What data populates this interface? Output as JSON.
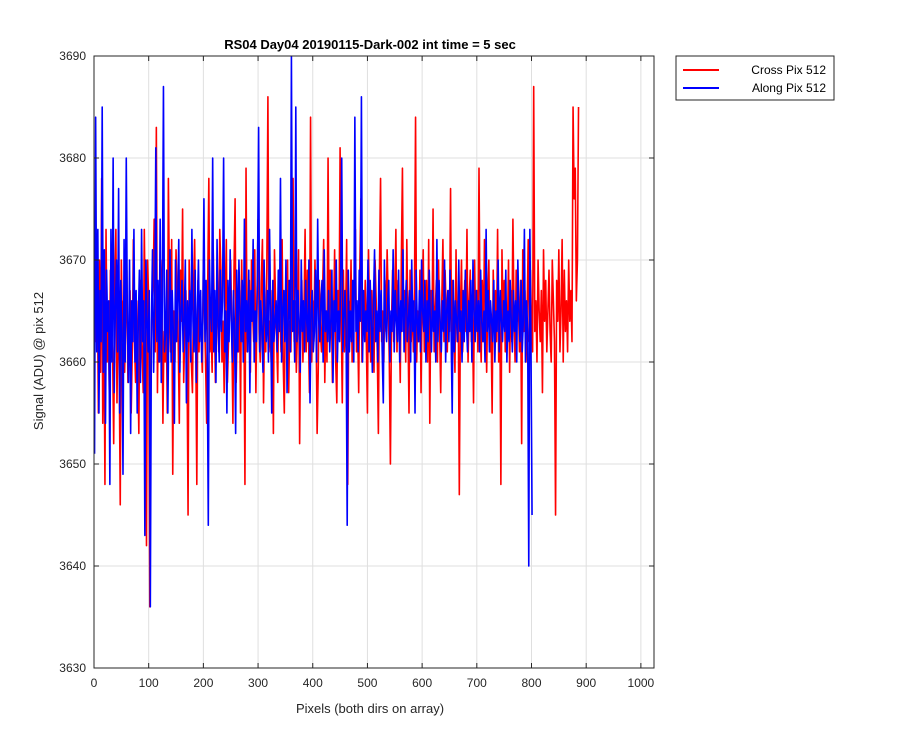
{
  "chart_data": {
    "type": "line",
    "title": "RS04 Day04 20190115-Dark-002 int time = 5 sec",
    "xlabel": "Pixels (both dirs on array)",
    "ylabel": "Signal (ADU) @ pix 512",
    "xlim": [
      0,
      1024
    ],
    "ylim": [
      3630,
      3690
    ],
    "xticks": [
      0,
      100,
      200,
      300,
      400,
      500,
      600,
      700,
      800,
      900,
      1000
    ],
    "yticks": [
      3630,
      3640,
      3650,
      3660,
      3670,
      3680,
      3690
    ],
    "grid": true,
    "legend_position": "outside-top-right",
    "sample_step": 2,
    "series": [
      {
        "name": "Cross Pix 512",
        "color": "#ff0000",
        "x_start": 0,
        "x_step": 2,
        "values": [
          3663,
          3672,
          3662,
          3668,
          3655,
          3670,
          3659,
          3678,
          3654,
          3666,
          3648,
          3673,
          3660,
          3664,
          3657,
          3669,
          3663,
          3661,
          3652,
          3667,
          3673,
          3656,
          3665,
          3660,
          3646,
          3670,
          3662,
          3666,
          3659,
          3664,
          3669,
          3658,
          3663,
          3667,
          3655,
          3661,
          3672,
          3662,
          3658,
          3666,
          3660,
          3653,
          3668,
          3664,
          3661,
          3657,
          3673,
          3663,
          3642,
          3670,
          3666,
          3636,
          3661,
          3665,
          3667,
          3674,
          3661,
          3683,
          3657,
          3666,
          3660,
          3670,
          3668,
          3654,
          3663,
          3660,
          3665,
          3655,
          3678,
          3667,
          3661,
          3672,
          3649,
          3665,
          3660,
          3671,
          3666,
          3662,
          3654,
          3669,
          3664,
          3675,
          3658,
          3663,
          3667,
          3661,
          3645,
          3670,
          3664,
          3660,
          3657,
          3667,
          3672,
          3662,
          3648,
          3668,
          3661,
          3666,
          3663,
          3659,
          3670,
          3665,
          3660,
          3654,
          3668,
          3678,
          3661,
          3664,
          3659,
          3671,
          3665,
          3658,
          3663,
          3667,
          3661,
          3673,
          3669,
          3660,
          3664,
          3657,
          3666,
          3672,
          3658,
          3662,
          3665,
          3670,
          3663,
          3654,
          3669,
          3676,
          3658,
          3664,
          3661,
          3667,
          3655,
          3670,
          3662,
          3666,
          3648,
          3679,
          3661,
          3664,
          3668,
          3659,
          3670,
          3665,
          3662,
          3671,
          3657,
          3666,
          3674,
          3663,
          3660,
          3668,
          3672,
          3656,
          3665,
          3661,
          3669,
          3686,
          3661,
          3664,
          3660,
          3667,
          3653,
          3671,
          3666,
          3662,
          3658,
          3669,
          3665,
          3661,
          3672,
          3660,
          3655,
          3667,
          3663,
          3670,
          3657,
          3664,
          3661,
          3669,
          3678,
          3662,
          3666,
          3659,
          3663,
          3671,
          3652,
          3664,
          3668,
          3660,
          3665,
          3673,
          3661,
          3669,
          3663,
          3657,
          3684,
          3660,
          3666,
          3662,
          3670,
          3664,
          3653,
          3659,
          3668,
          3663,
          3661,
          3667,
          3672,
          3658,
          3665,
          3660,
          3680,
          3662,
          3669,
          3666,
          3658,
          3664,
          3671,
          3660,
          3656,
          3667,
          3663,
          3681,
          3665,
          3656,
          3669,
          3661,
          3664,
          3672,
          3648,
          3666,
          3662,
          3670,
          3660,
          3663,
          3667,
          3673,
          3661,
          3664,
          3657,
          3669,
          3676,
          3660,
          3666,
          3663,
          3668,
          3662,
          3655,
          3671,
          3664,
          3660,
          3667,
          3663,
          3659,
          3670,
          3666,
          3661,
          3653,
          3669,
          3678,
          3662,
          3665,
          3660,
          3668,
          3663,
          3671,
          3666,
          3660,
          3650,
          3664,
          3669,
          3662,
          3666,
          3673,
          3661,
          3668,
          3664,
          3658,
          3670,
          3679,
          3663,
          3667,
          3660,
          3672,
          3664,
          3655,
          3669,
          3662,
          3666,
          3661,
          3667,
          3684,
          3660,
          3665,
          3662,
          3669,
          3657,
          3666,
          3671,
          3661,
          3664,
          3668,
          3660,
          3672,
          3654,
          3667,
          3663,
          3675,
          3661,
          3665,
          3668,
          3660,
          3670,
          3663,
          3657,
          3666,
          3672,
          3662,
          3669,
          3665,
          3661,
          3667,
          3663,
          3677,
          3660,
          3668,
          3664,
          3659,
          3671,
          3662,
          3666,
          3647,
          3665,
          3670,
          3661,
          3664,
          3668,
          3663,
          3673,
          3660,
          3666,
          3669,
          3662,
          3665,
          3656,
          3670,
          3663,
          3667,
          3661,
          3679,
          3664,
          3660,
          3668,
          3662,
          3672,
          3665,
          3659,
          3666,
          3670,
          3661,
          3664,
          3655,
          3669,
          3663,
          3667,
          3662,
          3673,
          3660,
          3666,
          3648,
          3671,
          3664,
          3668,
          3661,
          3665,
          3663,
          3670,
          3659,
          3667,
          3662,
          3674,
          3665,
          3660,
          3669,
          3664,
          3666,
          3661,
          3668,
          3652,
          3671,
          3663,
          3667,
          3660,
          3665,
          3672,
          3662,
          3669,
          3664,
          3661,
          3687,
          3663,
          3666,
          3660,
          3670,
          3665,
          3662,
          3667,
          3657,
          3671,
          3664,
          3668,
          3661,
          3665,
          3669,
          3663,
          3660,
          3670,
          3666,
          3662,
          3645,
          3668,
          3664,
          3671,
          3661,
          3665,
          3672,
          3660,
          3669,
          3663,
          3666,
          3661,
          3670,
          3664,
          3667,
          3662,
          3685,
          3676,
          3679,
          3666,
          3670,
          3685
        ]
      },
      {
        "name": "Along Pix 512",
        "color": "#0000ff",
        "x_start": 1,
        "x_step": 2,
        "values": [
          3651,
          3684,
          3661,
          3673,
          3655,
          3667,
          3662,
          3685,
          3659,
          3671,
          3654,
          3669,
          3663,
          3666,
          3648,
          3673,
          3660,
          3680,
          3657,
          3665,
          3670,
          3661,
          3677,
          3655,
          3668,
          3663,
          3649,
          3672,
          3660,
          3680,
          3664,
          3658,
          3670,
          3653,
          3666,
          3662,
          3673,
          3660,
          3667,
          3655,
          3664,
          3669,
          3658,
          3673,
          3662,
          3666,
          3643,
          3670,
          3664,
          3661,
          3667,
          3636,
          3664,
          3671,
          3659,
          3665,
          3681,
          3662,
          3668,
          3660,
          3674,
          3658,
          3666,
          3687,
          3661,
          3663,
          3669,
          3655,
          3665,
          3671,
          3660,
          3667,
          3663,
          3654,
          3670,
          3662,
          3666,
          3672,
          3659,
          3665,
          3668,
          3661,
          3664,
          3670,
          3656,
          3666,
          3662,
          3667,
          3660,
          3673,
          3664,
          3661,
          3669,
          3658,
          3665,
          3670,
          3662,
          3667,
          3660,
          3664,
          3676,
          3662,
          3668,
          3661,
          3644,
          3670,
          3665,
          3663,
          3680,
          3661,
          3667,
          3658,
          3672,
          3664,
          3660,
          3669,
          3663,
          3666,
          3680,
          3661,
          3665,
          3655,
          3668,
          3662,
          3671,
          3664,
          3660,
          3667,
          3663,
          3653,
          3669,
          3661,
          3670,
          3665,
          3662,
          3668,
          3660,
          3674,
          3663,
          3666,
          3661,
          3669,
          3657,
          3667,
          3664,
          3672,
          3660,
          3665,
          3662,
          3669,
          3683,
          3661,
          3666,
          3663,
          3659,
          3670,
          3664,
          3662,
          3667,
          3660,
          3673,
          3665,
          3655,
          3668,
          3662,
          3664,
          3666,
          3661,
          3669,
          3663,
          3678,
          3660,
          3665,
          3667,
          3662,
          3670,
          3657,
          3664,
          3668,
          3661,
          3690,
          3663,
          3666,
          3660,
          3685,
          3662,
          3667,
          3664,
          3659,
          3670,
          3663,
          3666,
          3661,
          3668,
          3664,
          3662,
          3670,
          3656,
          3665,
          3667,
          3661,
          3663,
          3669,
          3660,
          3674,
          3664,
          3662,
          3666,
          3668,
          3660,
          3671,
          3663,
          3665,
          3662,
          3667,
          3661,
          3664,
          3669,
          3658,
          3666,
          3663,
          3670,
          3660,
          3665,
          3662,
          3668,
          3680,
          3661,
          3664,
          3667,
          3663,
          3644,
          3669,
          3661,
          3665,
          3662,
          3668,
          3660,
          3684,
          3663,
          3666,
          3661,
          3669,
          3664,
          3686,
          3660,
          3667,
          3662,
          3665,
          3663,
          3670,
          3661,
          3668,
          3664,
          3659,
          3666,
          3671,
          3662,
          3665,
          3660,
          3669,
          3663,
          3667,
          3661,
          3656,
          3670,
          3664,
          3662,
          3666,
          3668,
          3660,
          3665,
          3663,
          3671,
          3661,
          3667,
          3664,
          3662,
          3669,
          3660,
          3666,
          3663,
          3671,
          3661,
          3665,
          3668,
          3662,
          3664,
          3667,
          3660,
          3670,
          3663,
          3666,
          3655,
          3669,
          3664,
          3662,
          3667,
          3661,
          3670,
          3665,
          3663,
          3668,
          3660,
          3666,
          3662,
          3669,
          3664,
          3661,
          3667,
          3663,
          3665,
          3660,
          3672,
          3662,
          3668,
          3664,
          3661,
          3666,
          3663,
          3670,
          3660,
          3665,
          3667,
          3662,
          3669,
          3663,
          3655,
          3668,
          3661,
          3666,
          3664,
          3662,
          3670,
          3663,
          3665,
          3660,
          3667,
          3662,
          3669,
          3664,
          3661,
          3666,
          3663,
          3668,
          3660,
          3670,
          3665,
          3662,
          3667,
          3663,
          3666,
          3661,
          3669,
          3664,
          3662,
          3665,
          3660,
          3673,
          3663,
          3667,
          3661,
          3666,
          3664,
          3662,
          3668,
          3660,
          3665,
          3663,
          3670,
          3661,
          3667,
          3664,
          3662,
          3666,
          3663,
          3669,
          3660,
          3665,
          3662,
          3668,
          3664,
          3661,
          3667,
          3663,
          3666,
          3660,
          3670,
          3665,
          3662,
          3668,
          3661,
          3664,
          3673,
          3660,
          3666,
          3663,
          3640,
          3673,
          3662,
          3645
        ]
      }
    ]
  }
}
